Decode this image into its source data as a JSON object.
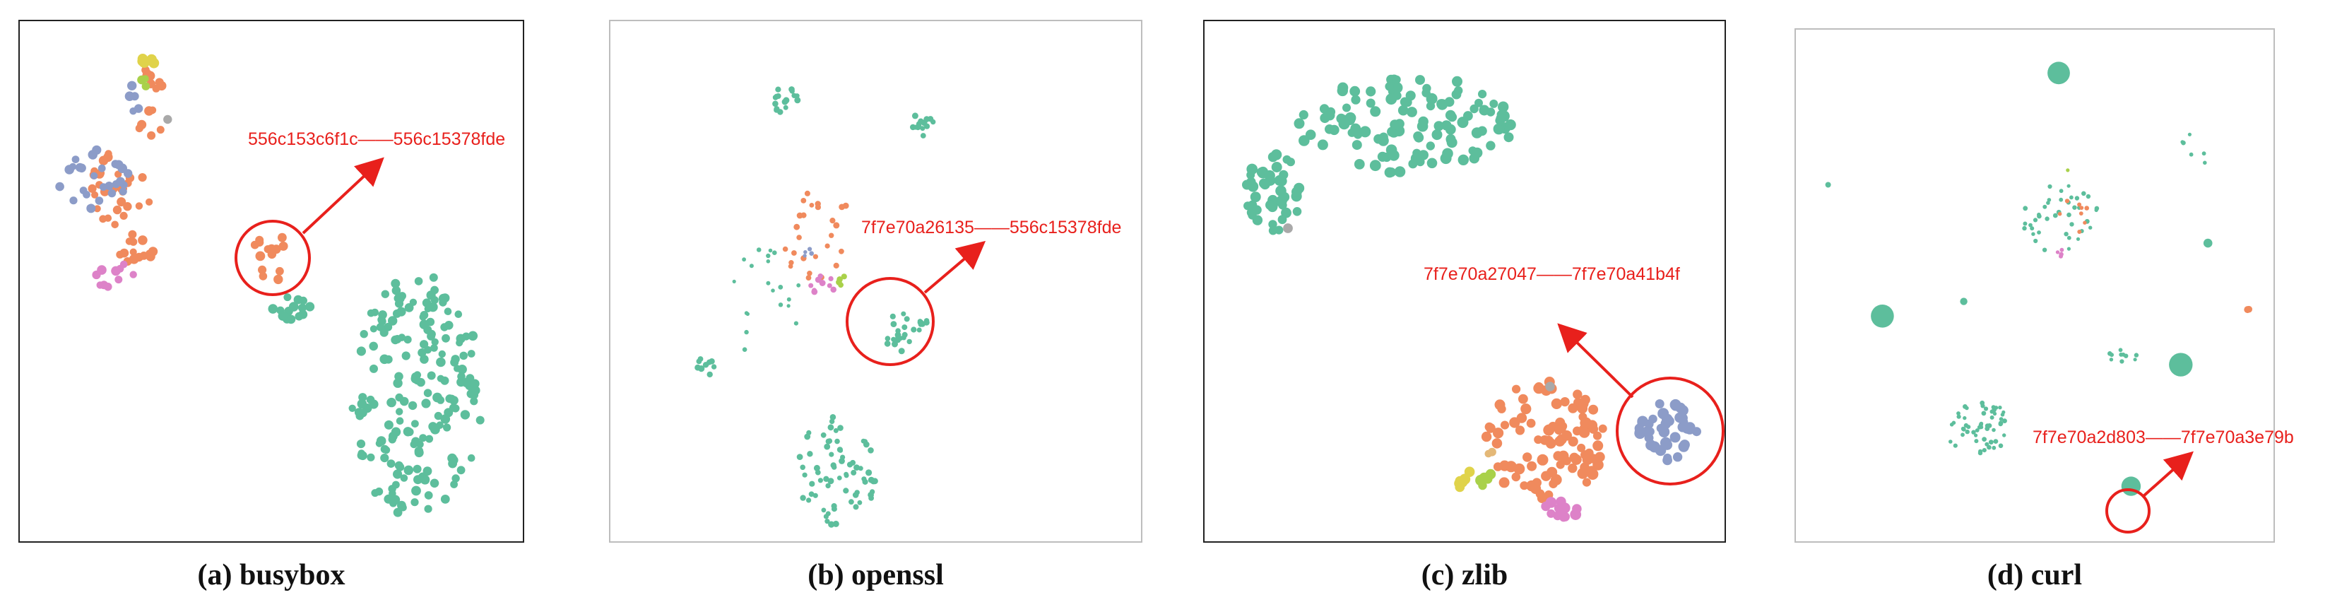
{
  "colors": {
    "teal": "#5dbe9c",
    "orange": "#f08a5d",
    "blue": "#8c9cc8",
    "pink": "#dd82c8",
    "lime": "#a9d14a",
    "yellow": "#e0d34a",
    "gray": "#a9a9a9",
    "tan": "#e4b877",
    "highlight": "#e8201c"
  },
  "chart_data": [
    {
      "type": "scatter",
      "caption": "(a) busybox",
      "annotation": "556c153c6f1c——556c15378fde",
      "clusters": [
        {
          "color": "teal",
          "cx": 0.8,
          "cy": 0.73,
          "rx": 0.14,
          "ry": 0.25,
          "n": 190,
          "r": 6
        },
        {
          "color": "teal",
          "cx": 0.54,
          "cy": 0.55,
          "rx": 0.04,
          "ry": 0.025,
          "n": 14,
          "r": 6
        },
        {
          "color": "orange",
          "cx": 0.49,
          "cy": 0.45,
          "rx": 0.04,
          "ry": 0.07,
          "n": 14,
          "r": 6
        },
        {
          "color": "orange",
          "cx": 0.24,
          "cy": 0.14,
          "rx": 0.035,
          "ry": 0.08,
          "n": 14,
          "r": 6
        },
        {
          "color": "orange",
          "cx": 0.18,
          "cy": 0.31,
          "rx": 0.07,
          "ry": 0.08,
          "n": 30,
          "r": 6
        },
        {
          "color": "orange",
          "cx": 0.21,
          "cy": 0.43,
          "rx": 0.05,
          "ry": 0.03,
          "n": 14,
          "r": 6
        },
        {
          "color": "blue",
          "cx": 0.12,
          "cy": 0.29,
          "rx": 0.08,
          "ry": 0.06,
          "n": 26,
          "r": 6
        },
        {
          "color": "blue",
          "cx": 0.21,
          "cy": 0.13,
          "rx": 0.02,
          "ry": 0.03,
          "n": 5,
          "r": 6
        },
        {
          "color": "pink",
          "cx": 0.17,
          "cy": 0.49,
          "rx": 0.05,
          "ry": 0.03,
          "n": 10,
          "r": 6
        },
        {
          "color": "yellow",
          "cx": 0.24,
          "cy": 0.05,
          "rx": 0.015,
          "ry": 0.02,
          "n": 5,
          "r": 7
        },
        {
          "color": "lime",
          "cx": 0.23,
          "cy": 0.1,
          "rx": 0.01,
          "ry": 0.02,
          "n": 3,
          "r": 6
        },
        {
          "color": "gray",
          "cx": 0.28,
          "cy": 0.17,
          "rx": 0.01,
          "ry": 0.01,
          "n": 1,
          "r": 6
        }
      ]
    },
    {
      "type": "scatter",
      "caption": "(b) openssl",
      "annotation": "7f7e70a26135——556c15378fde",
      "clusters": [
        {
          "color": "teal",
          "cx": 0.32,
          "cy": 0.13,
          "rx": 0.03,
          "ry": 0.03,
          "n": 16,
          "r": 4
        },
        {
          "color": "teal",
          "cx": 0.59,
          "cy": 0.18,
          "rx": 0.025,
          "ry": 0.025,
          "n": 14,
          "r": 4
        },
        {
          "color": "teal",
          "cx": 0.56,
          "cy": 0.6,
          "rx": 0.05,
          "ry": 0.04,
          "n": 26,
          "r": 4
        },
        {
          "color": "teal",
          "cx": 0.42,
          "cy": 0.88,
          "rx": 0.08,
          "ry": 0.11,
          "n": 70,
          "r": 4
        },
        {
          "color": "teal",
          "cx": 0.16,
          "cy": 0.67,
          "rx": 0.02,
          "ry": 0.02,
          "n": 10,
          "r": 4
        },
        {
          "color": "teal",
          "cx": 0.28,
          "cy": 0.54,
          "rx": 0.08,
          "ry": 0.12,
          "n": 20,
          "r": 3
        },
        {
          "color": "orange",
          "cx": 0.38,
          "cy": 0.4,
          "rx": 0.07,
          "ry": 0.1,
          "n": 26,
          "r": 4
        },
        {
          "color": "pink",
          "cx": 0.39,
          "cy": 0.5,
          "rx": 0.04,
          "ry": 0.02,
          "n": 10,
          "r": 4
        },
        {
          "color": "lime",
          "cx": 0.43,
          "cy": 0.49,
          "rx": 0.03,
          "ry": 0.02,
          "n": 4,
          "r": 4
        },
        {
          "color": "blue",
          "cx": 0.35,
          "cy": 0.44,
          "rx": 0.03,
          "ry": 0.02,
          "n": 4,
          "r": 3
        }
      ]
    },
    {
      "type": "scatter",
      "caption": "(c) zlib",
      "annotation": "7f7e70a27047——7f7e70a41b4f",
      "clusters": [
        {
          "color": "teal",
          "cx": 0.38,
          "cy": 0.18,
          "rx": 0.22,
          "ry": 0.1,
          "n": 120,
          "r": 7
        },
        {
          "color": "teal",
          "cx": 0.11,
          "cy": 0.32,
          "rx": 0.06,
          "ry": 0.08,
          "n": 45,
          "r": 7
        },
        {
          "color": "orange",
          "cx": 0.66,
          "cy": 0.82,
          "rx": 0.12,
          "ry": 0.12,
          "n": 95,
          "r": 7
        },
        {
          "color": "blue",
          "cx": 0.91,
          "cy": 0.8,
          "rx": 0.06,
          "ry": 0.06,
          "n": 40,
          "r": 7
        },
        {
          "color": "pink",
          "cx": 0.68,
          "cy": 0.96,
          "rx": 0.06,
          "ry": 0.02,
          "n": 12,
          "r": 7
        },
        {
          "color": "yellow",
          "cx": 0.5,
          "cy": 0.9,
          "rx": 0.02,
          "ry": 0.02,
          "n": 6,
          "r": 7
        },
        {
          "color": "lime",
          "cx": 0.54,
          "cy": 0.9,
          "rx": 0.02,
          "ry": 0.02,
          "n": 5,
          "r": 7
        },
        {
          "color": "tan",
          "cx": 0.55,
          "cy": 0.85,
          "rx": 0.01,
          "ry": 0.01,
          "n": 2,
          "r": 6
        },
        {
          "color": "gray",
          "cx": 0.14,
          "cy": 0.39,
          "rx": 0.003,
          "ry": 0.003,
          "n": 1,
          "r": 6
        },
        {
          "color": "gray",
          "cx": 0.67,
          "cy": 0.71,
          "rx": 0.003,
          "ry": 0.003,
          "n": 1,
          "r": 6
        }
      ]
    },
    {
      "type": "scatter",
      "caption": "(d) curl",
      "annotation": "7f7e70a2d803——7f7e70a3e79b",
      "clusters": [
        {
          "color": "teal",
          "cx": 0.55,
          "cy": 0.06,
          "rx": 0.01,
          "ry": 0.012,
          "n": 1,
          "r": 17
        },
        {
          "color": "teal",
          "cx": 0.16,
          "cy": 0.56,
          "rx": 0.01,
          "ry": 0.012,
          "n": 1,
          "r": 17
        },
        {
          "color": "teal",
          "cx": 0.82,
          "cy": 0.66,
          "rx": 0.01,
          "ry": 0.012,
          "n": 1,
          "r": 17
        },
        {
          "color": "teal",
          "cx": 0.71,
          "cy": 0.91,
          "rx": 0.01,
          "ry": 0.012,
          "n": 1,
          "r": 12
        },
        {
          "color": "teal",
          "cx": 0.55,
          "cy": 0.36,
          "rx": 0.09,
          "ry": 0.07,
          "n": 40,
          "r": 3
        },
        {
          "color": "teal",
          "cx": 0.37,
          "cy": 0.79,
          "rx": 0.07,
          "ry": 0.06,
          "n": 55,
          "r": 3
        },
        {
          "color": "teal",
          "cx": 0.69,
          "cy": 0.64,
          "rx": 0.04,
          "ry": 0.02,
          "n": 10,
          "r": 3
        },
        {
          "color": "teal",
          "cx": 0.85,
          "cy": 0.22,
          "rx": 0.03,
          "ry": 0.04,
          "n": 6,
          "r": 3
        },
        {
          "color": "teal",
          "cx": 0.88,
          "cy": 0.41,
          "rx": 0.003,
          "ry": 0.003,
          "n": 1,
          "r": 6
        },
        {
          "color": "teal",
          "cx": 0.04,
          "cy": 0.29,
          "rx": 0.003,
          "ry": 0.003,
          "n": 1,
          "r": 4
        },
        {
          "color": "teal",
          "cx": 0.34,
          "cy": 0.53,
          "rx": 0.003,
          "ry": 0.003,
          "n": 1,
          "r": 5
        },
        {
          "color": "orange",
          "cx": 0.58,
          "cy": 0.35,
          "rx": 0.04,
          "ry": 0.04,
          "n": 8,
          "r": 3
        },
        {
          "color": "orange",
          "cx": 0.97,
          "cy": 0.55,
          "rx": 0.005,
          "ry": 0.005,
          "n": 2,
          "r": 5
        },
        {
          "color": "pink",
          "cx": 0.55,
          "cy": 0.43,
          "rx": 0.01,
          "ry": 0.01,
          "n": 4,
          "r": 3
        },
        {
          "color": "lime",
          "cx": 0.57,
          "cy": 0.26,
          "rx": 0.005,
          "ry": 0.005,
          "n": 1,
          "r": 3
        }
      ]
    }
  ]
}
